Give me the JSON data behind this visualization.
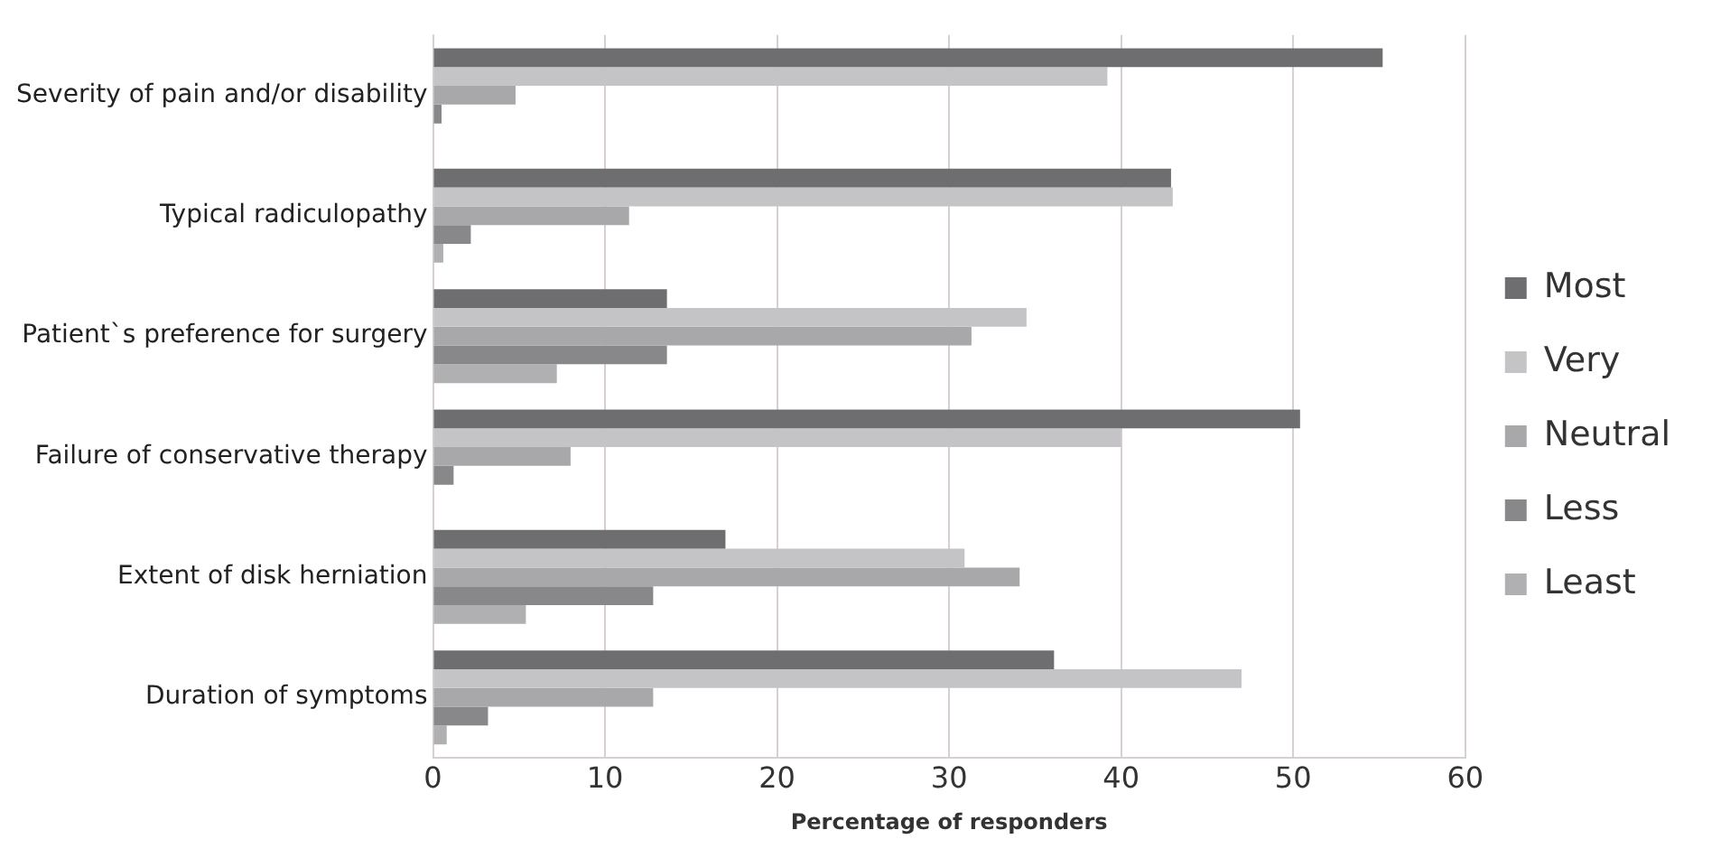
{
  "chart_data": {
    "type": "bar",
    "orientation": "horizontal",
    "xlabel": "Percentage of responders",
    "categories": [
      "Severity of pain and/or disability",
      "Typical radiculopathy",
      "Patient`s preference for surgery",
      "Failure of conservative therapy",
      "Extent of disk herniation",
      "Duration of symptoms"
    ],
    "series": [
      {
        "name": "Most",
        "color": "#6e6e70",
        "values": [
          55.2,
          42.9,
          13.6,
          50.4,
          17.0,
          36.1
        ]
      },
      {
        "name": "Very",
        "color": "#c4c4c6",
        "values": [
          39.2,
          43.0,
          34.5,
          40.0,
          30.9,
          47.0
        ]
      },
      {
        "name": "Neutral",
        "color": "#a8a8aa",
        "values": [
          4.8,
          11.4,
          31.3,
          8.0,
          34.1,
          12.8
        ]
      },
      {
        "name": "Less",
        "color": "#88888a",
        "values": [
          0.5,
          2.2,
          13.6,
          1.2,
          12.8,
          3.2
        ]
      },
      {
        "name": "Least",
        "color": "#b0b0b2",
        "values": [
          0,
          0.6,
          7.2,
          0,
          5.4,
          0.8
        ]
      }
    ],
    "xlim": [
      0,
      60
    ],
    "xticks": [
      0,
      10,
      20,
      30,
      40,
      50,
      60
    ],
    "grid": "x",
    "legend": "right"
  }
}
